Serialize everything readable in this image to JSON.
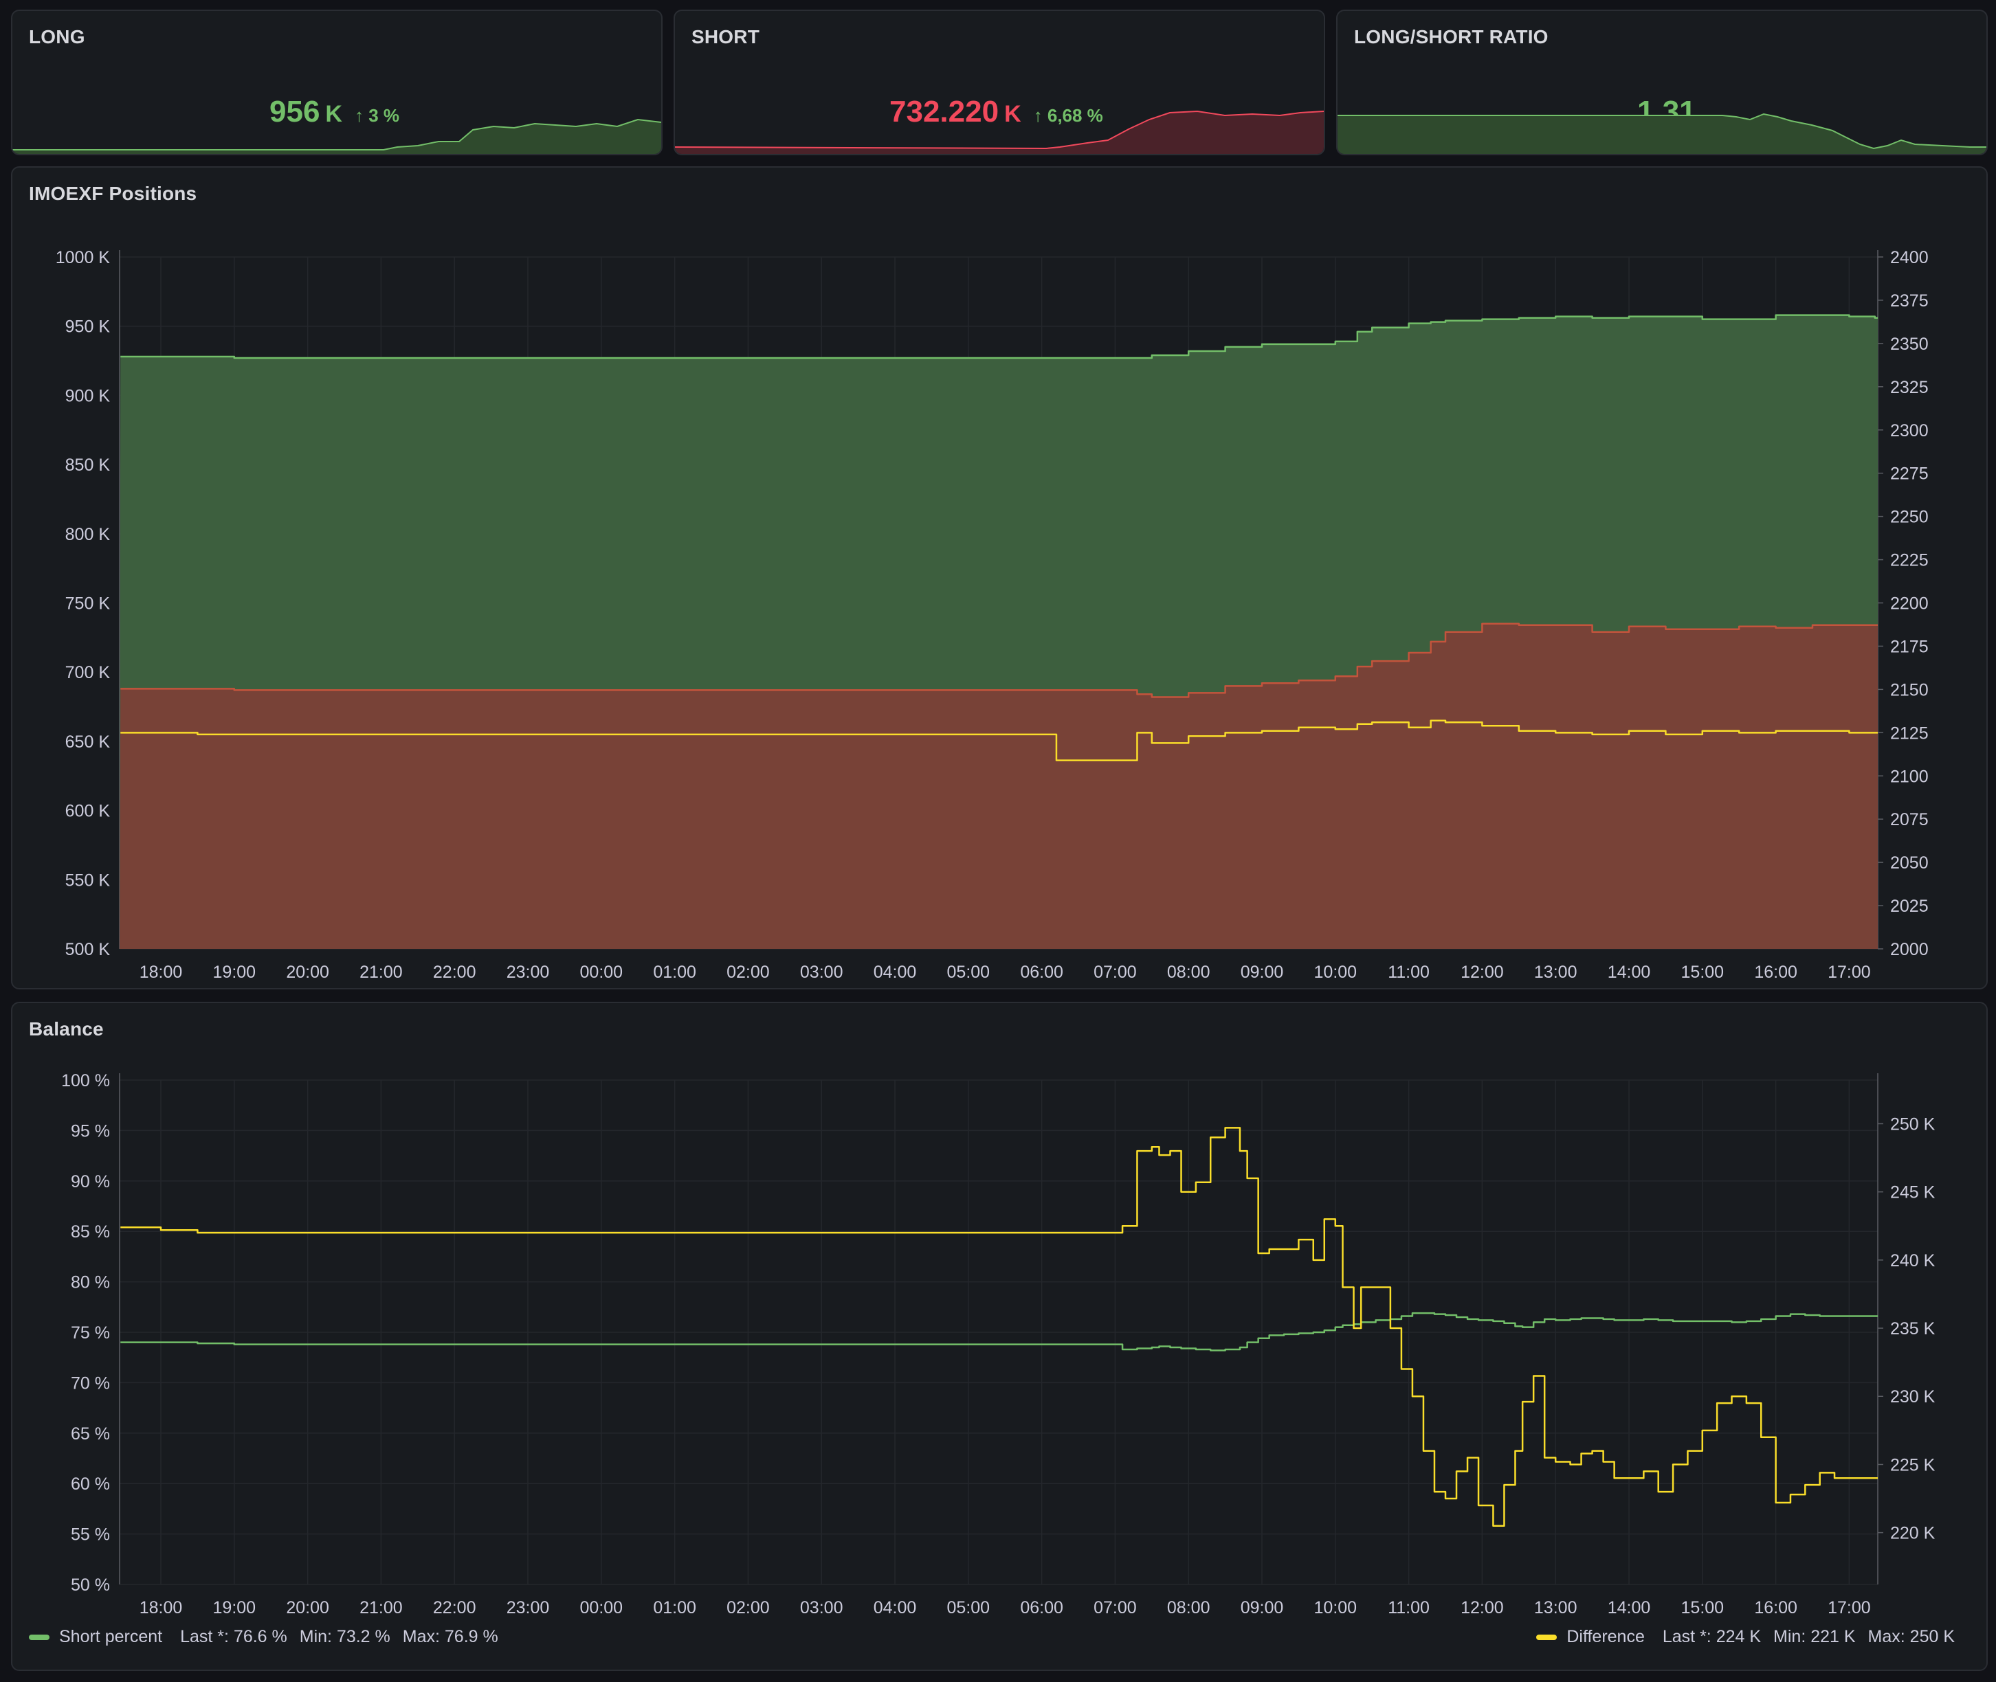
{
  "stats": {
    "long": {
      "title": "LONG",
      "value": "956",
      "unit": "K",
      "delta": "3 %",
      "color": "#73bf69",
      "fill": "#2f4a2d"
    },
    "short": {
      "title": "SHORT",
      "value": "732.220",
      "unit": "K",
      "delta": "6,68 %",
      "color": "#f2495c",
      "fill": "#4a2229"
    },
    "ratio": {
      "title": "LONG/SHORT RATIO",
      "value": "1.31",
      "color": "#73bf69",
      "fill": "#2f4a2d"
    }
  },
  "positions": {
    "title": "IMOEXF Positions"
  },
  "balance": {
    "title": "Balance"
  },
  "legend": {
    "short_percent": {
      "name": "Short percent",
      "last": "Last *: 76.6 %",
      "min": "Min: 73.2 %",
      "max": "Max: 76.9 %",
      "color": "#73bf69"
    },
    "difference": {
      "name": "Difference",
      "last": "Last *: 224 K",
      "min": "Min: 221 K",
      "max": "Max: 250 K",
      "color": "#fade2a"
    }
  },
  "chart_data": [
    {
      "type": "area",
      "title": "IMOEXF Positions",
      "time_labels": [
        "18:00",
        "19:00",
        "20:00",
        "21:00",
        "22:00",
        "23:00",
        "00:00",
        "01:00",
        "02:00",
        "03:00",
        "04:00",
        "05:00",
        "06:00",
        "07:00",
        "08:00",
        "09:00",
        "10:00",
        "11:00",
        "12:00",
        "13:00",
        "14:00",
        "15:00",
        "16:00",
        "17:00"
      ],
      "y_left": {
        "ticks": [
          "1000 K",
          "950 K",
          "900 K",
          "850 K",
          "800 K",
          "750 K",
          "700 K",
          "650 K",
          "600 K",
          "550 K",
          "500 K"
        ],
        "min": 500,
        "max": 1000,
        "unit": "K"
      },
      "y_right": {
        "ticks": [
          "2400",
          "2375",
          "2350",
          "2325",
          "2300",
          "2275",
          "2250",
          "2225",
          "2200",
          "2175",
          "2150",
          "2125",
          "2100",
          "2075",
          "2050",
          "2025",
          "2000"
        ],
        "min": 2000,
        "max": 2400
      },
      "x": [
        17.45,
        18,
        18.5,
        19,
        21,
        23,
        1,
        3,
        5,
        6.2,
        7,
        7.3,
        7.5,
        8,
        8.5,
        9,
        9.5,
        10,
        10.3,
        10.5,
        11,
        11.3,
        11.5,
        12,
        12.5,
        13,
        13.5,
        14,
        14.5,
        15,
        15.5,
        16,
        16.5,
        17,
        17.35
      ],
      "series": [
        {
          "axis": "left",
          "color": "#73bf69",
          "fill": "#3d5f3e",
          "values": [
            928,
            928,
            928,
            927,
            927,
            927,
            927,
            927,
            927,
            927,
            927,
            927,
            929,
            932,
            935,
            937,
            937,
            939,
            946,
            949,
            952,
            953,
            954,
            955,
            956,
            957,
            956,
            957,
            957,
            955,
            955,
            958,
            958,
            957,
            956
          ]
        },
        {
          "axis": "left",
          "color": "#c4543c",
          "fill": "#784237",
          "values": [
            688,
            688,
            688,
            687,
            687,
            687,
            687,
            687,
            687,
            687,
            687,
            684,
            682,
            685,
            690,
            692,
            694,
            697,
            704,
            708,
            714,
            722,
            729,
            735,
            734,
            734,
            729,
            733,
            731,
            731,
            733,
            732,
            734,
            734,
            734
          ]
        },
        {
          "axis": "right",
          "color": "#fade2a",
          "values": [
            2125,
            2125,
            2124,
            2124,
            2124,
            2124,
            2124,
            2124,
            2124,
            2109,
            2109,
            2125,
            2119,
            2123,
            2125,
            2126,
            2128,
            2127,
            2130,
            2131,
            2128,
            2132,
            2131,
            2129,
            2126,
            2125,
            2124,
            2126,
            2124,
            2126,
            2125,
            2126,
            2126,
            2125,
            2125
          ]
        }
      ]
    },
    {
      "type": "line",
      "title": "Balance",
      "time_labels": [
        "18:00",
        "19:00",
        "20:00",
        "21:00",
        "22:00",
        "23:00",
        "00:00",
        "01:00",
        "02:00",
        "03:00",
        "04:00",
        "05:00",
        "06:00",
        "07:00",
        "08:00",
        "09:00",
        "10:00",
        "11:00",
        "12:00",
        "13:00",
        "14:00",
        "15:00",
        "16:00",
        "17:00"
      ],
      "y_left": {
        "ticks": [
          "100 %",
          "95 %",
          "90 %",
          "85 %",
          "80 %",
          "75 %",
          "70 %",
          "65 %",
          "60 %",
          "55 %",
          "50 %"
        ],
        "min": 50,
        "max": 100
      },
      "y_right": {
        "ticks": [
          "250 K",
          "245 K",
          "240 K",
          "235 K",
          "230 K",
          "225 K",
          "220 K"
        ],
        "min": 216.2,
        "max": 253.2
      },
      "x": [
        17.45,
        18,
        18.5,
        19,
        21,
        23,
        1,
        3,
        5,
        7,
        7.1,
        7.3,
        7.5,
        7.6,
        7.75,
        7.9,
        8.1,
        8.3,
        8.5,
        8.7,
        8.8,
        8.95,
        9.1,
        9.3,
        9.5,
        9.7,
        9.85,
        10,
        10.1,
        10.25,
        10.35,
        10.55,
        10.75,
        10.9,
        11.05,
        11.2,
        11.35,
        11.5,
        11.65,
        11.8,
        11.95,
        12.15,
        12.3,
        12.45,
        12.55,
        12.7,
        12.85,
        13,
        13.1,
        13.2,
        13.35,
        13.5,
        13.65,
        13.8,
        14,
        14.2,
        14.4,
        14.6,
        14.8,
        15,
        15.2,
        15.4,
        15.6,
        15.8,
        16,
        16.2,
        16.4,
        16.6,
        16.8,
        16.9,
        17.05,
        17.2,
        17.35
      ],
      "series": [
        {
          "name": "Short percent",
          "axis": "left",
          "color": "#73bf69",
          "values": [
            74,
            74,
            73.9,
            73.8,
            73.8,
            73.8,
            73.8,
            73.8,
            73.8,
            73.8,
            73.3,
            73.4,
            73.5,
            73.6,
            73.5,
            73.4,
            73.3,
            73.2,
            73.3,
            73.5,
            74,
            74.4,
            74.7,
            74.8,
            74.9,
            75,
            75.2,
            75.5,
            75.7,
            75.8,
            76,
            76.2,
            76.3,
            76.6,
            76.9,
            76.9,
            76.8,
            76.7,
            76.5,
            76.3,
            76.2,
            76.1,
            75.9,
            75.6,
            75.5,
            76,
            76.3,
            76.2,
            76.2,
            76.3,
            76.4,
            76.4,
            76.3,
            76.2,
            76.2,
            76.3,
            76.2,
            76.1,
            76.1,
            76.1,
            76.1,
            76,
            76.1,
            76.3,
            76.6,
            76.8,
            76.7,
            76.6,
            76.6,
            76.6,
            76.6,
            76.6,
            76.6
          ]
        },
        {
          "name": "Difference",
          "axis": "right",
          "color": "#fade2a",
          "values": [
            242.4,
            242.2,
            242,
            242,
            242,
            242,
            242,
            242,
            242,
            242,
            242.5,
            248,
            248.3,
            247.7,
            248,
            245,
            245.7,
            249,
            249.7,
            248,
            246,
            240.5,
            240.8,
            240.8,
            241.5,
            240,
            243,
            242.5,
            238,
            235,
            238,
            238,
            235,
            232,
            230,
            226,
            223,
            222.5,
            224.5,
            225.5,
            222,
            220.5,
            223.5,
            226,
            229.6,
            231.5,
            225.5,
            225.2,
            225.2,
            225,
            225.8,
            226,
            225.2,
            224,
            224,
            224.5,
            223,
            225,
            226,
            227.5,
            229.5,
            230,
            229.5,
            227,
            222.2,
            222.8,
            223.5,
            224.4,
            224,
            224,
            224,
            224,
            224
          ]
        }
      ]
    }
  ]
}
